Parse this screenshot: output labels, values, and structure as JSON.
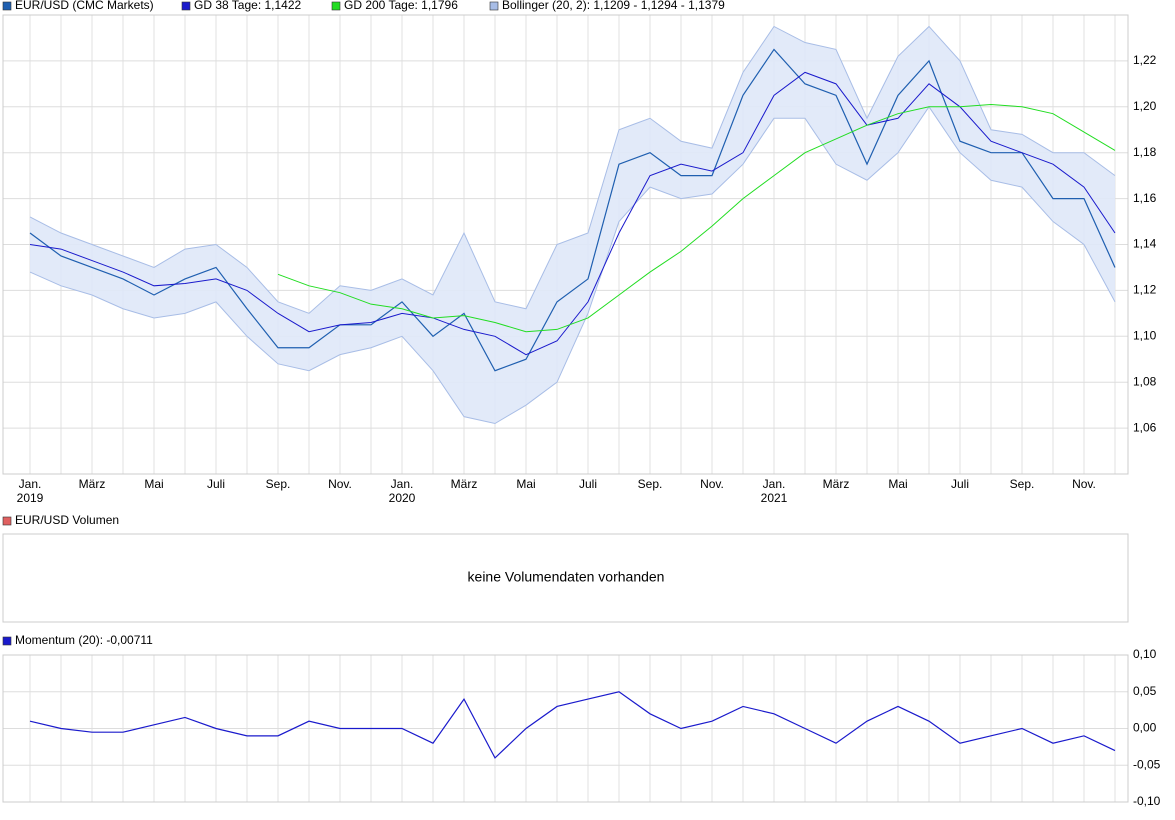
{
  "chart_data": [
    {
      "type": "line",
      "x": [
        "2019-01",
        "2019-02",
        "2019-03",
        "2019-04",
        "2019-05",
        "2019-06",
        "2019-07",
        "2019-08",
        "2019-09",
        "2019-10",
        "2019-11",
        "2019-12",
        "2020-01",
        "2020-02",
        "2020-03",
        "2020-04",
        "2020-05",
        "2020-06",
        "2020-07",
        "2020-08",
        "2020-09",
        "2020-10",
        "2020-11",
        "2020-12",
        "2021-01",
        "2021-02",
        "2021-03",
        "2021-04",
        "2021-05",
        "2021-06",
        "2021-07",
        "2021-08",
        "2021-09",
        "2021-10",
        "2021-11",
        "2021-12"
      ],
      "series": [
        {
          "name": "EUR/USD (CMC Markets)",
          "color": "#1f5fb0",
          "values": [
            1.145,
            1.135,
            1.13,
            1.125,
            1.118,
            1.125,
            1.13,
            1.112,
            1.095,
            1.095,
            1.105,
            1.105,
            1.115,
            1.1,
            1.11,
            1.085,
            1.09,
            1.115,
            1.125,
            1.175,
            1.18,
            1.17,
            1.17,
            1.205,
            1.225,
            1.21,
            1.205,
            1.175,
            1.205,
            1.22,
            1.185,
            1.18,
            1.18,
            1.16,
            1.16,
            1.13
          ]
        },
        {
          "name": "GD 38 Tage: 1,1422",
          "color": "#1a1acc",
          "values": [
            1.14,
            1.138,
            1.133,
            1.128,
            1.122,
            1.123,
            1.125,
            1.12,
            1.11,
            1.102,
            1.105,
            1.106,
            1.11,
            1.108,
            1.103,
            1.1,
            1.092,
            1.098,
            1.115,
            1.145,
            1.17,
            1.175,
            1.172,
            1.18,
            1.205,
            1.215,
            1.21,
            1.192,
            1.195,
            1.21,
            1.2,
            1.185,
            1.18,
            1.175,
            1.165,
            1.145
          ]
        },
        {
          "name": "GD 200 Tage: 1,1796",
          "color": "#22dd22",
          "values": [
            null,
            null,
            null,
            null,
            null,
            null,
            null,
            null,
            1.127,
            1.122,
            1.119,
            1.114,
            1.112,
            1.108,
            1.109,
            1.106,
            1.102,
            1.103,
            1.108,
            1.118,
            1.128,
            1.137,
            1.148,
            1.16,
            1.17,
            1.18,
            1.186,
            1.192,
            1.197,
            1.2,
            1.2,
            1.201,
            1.2,
            1.197,
            1.189,
            1.181
          ]
        }
      ],
      "bands": {
        "name": "Bollinger (20, 2): 1,1209 - 1,1294 - 1,1379",
        "color": "#a8bde6",
        "upper": [
          1.152,
          1.145,
          1.14,
          1.135,
          1.13,
          1.138,
          1.14,
          1.13,
          1.115,
          1.11,
          1.122,
          1.12,
          1.125,
          1.118,
          1.145,
          1.115,
          1.112,
          1.14,
          1.145,
          1.19,
          1.195,
          1.185,
          1.182,
          1.215,
          1.235,
          1.228,
          1.225,
          1.195,
          1.222,
          1.235,
          1.22,
          1.19,
          1.188,
          1.18,
          1.18,
          1.17
        ],
        "lower": [
          1.128,
          1.122,
          1.118,
          1.112,
          1.108,
          1.11,
          1.115,
          1.1,
          1.088,
          1.085,
          1.092,
          1.095,
          1.1,
          1.085,
          1.065,
          1.062,
          1.07,
          1.08,
          1.11,
          1.15,
          1.165,
          1.16,
          1.162,
          1.175,
          1.195,
          1.195,
          1.175,
          1.168,
          1.18,
          1.2,
          1.18,
          1.168,
          1.165,
          1.15,
          1.14,
          1.115
        ]
      },
      "ylim": [
        1.04,
        1.24
      ],
      "yticks": [
        {
          "value": 1.06,
          "label": "1,06"
        },
        {
          "value": 1.08,
          "label": "1,08"
        },
        {
          "value": 1.1,
          "label": "1,10"
        },
        {
          "value": 1.12,
          "label": "1,12"
        },
        {
          "value": 1.14,
          "label": "1,14"
        },
        {
          "value": 1.16,
          "label": "1,16"
        },
        {
          "value": 1.18,
          "label": "1,18"
        },
        {
          "value": 1.2,
          "label": "1,20"
        },
        {
          "value": 1.22,
          "label": "1,22"
        }
      ],
      "xticks": [
        {
          "value": "2019-01",
          "label": "Jan."
        },
        {
          "value": "2019-03",
          "label": "März"
        },
        {
          "value": "2019-05",
          "label": "Mai"
        },
        {
          "value": "2019-07",
          "label": "Juli"
        },
        {
          "value": "2019-09",
          "label": "Sep."
        },
        {
          "value": "2019-11",
          "label": "Nov."
        },
        {
          "value": "2020-01",
          "label": "Jan."
        },
        {
          "value": "2020-03",
          "label": "März"
        },
        {
          "value": "2020-05",
          "label": "Mai"
        },
        {
          "value": "2020-07",
          "label": "Juli"
        },
        {
          "value": "2020-09",
          "label": "Sep."
        },
        {
          "value": "2020-11",
          "label": "Nov."
        },
        {
          "value": "2021-01",
          "label": "Jan."
        },
        {
          "value": "2021-03",
          "label": "März"
        },
        {
          "value": "2021-05",
          "label": "Mai"
        },
        {
          "value": "2021-07",
          "label": "Juli"
        },
        {
          "value": "2021-09",
          "label": "Sep."
        },
        {
          "value": "2021-11",
          "label": "Nov."
        }
      ],
      "year_labels": [
        {
          "value": "2019-01",
          "label": "2019"
        },
        {
          "value": "2020-01",
          "label": "2020"
        },
        {
          "value": "2021-01",
          "label": "2021"
        }
      ],
      "grid": true
    },
    {
      "type": "volume",
      "title": "EUR/USD Volumen",
      "color": "#e06060",
      "message": "keine Volumendaten vorhanden"
    },
    {
      "type": "line",
      "series": [
        {
          "name": "Momentum (20): -0,00711",
          "color": "#1a1acc",
          "values": [
            0.01,
            0.0,
            -0.005,
            -0.005,
            0.005,
            0.015,
            0.0,
            -0.01,
            -0.01,
            0.01,
            0.0,
            0.0,
            0.0,
            -0.02,
            0.04,
            -0.04,
            0.0,
            0.03,
            0.04,
            0.05,
            0.02,
            0.0,
            0.01,
            0.03,
            0.02,
            0.0,
            -0.02,
            0.01,
            0.03,
            0.01,
            -0.02,
            -0.01,
            0.0,
            -0.02,
            -0.01,
            -0.03
          ]
        }
      ],
      "ylim": [
        -0.1,
        0.1
      ],
      "yticks": [
        {
          "value": -0.1,
          "label": "-0,10"
        },
        {
          "value": -0.05,
          "label": "-0,05"
        },
        {
          "value": 0,
          "label": "0,00"
        },
        {
          "value": 0.05,
          "label": "0,05"
        },
        {
          "value": 0.1,
          "label": "0,10"
        }
      ],
      "grid": true
    }
  ]
}
